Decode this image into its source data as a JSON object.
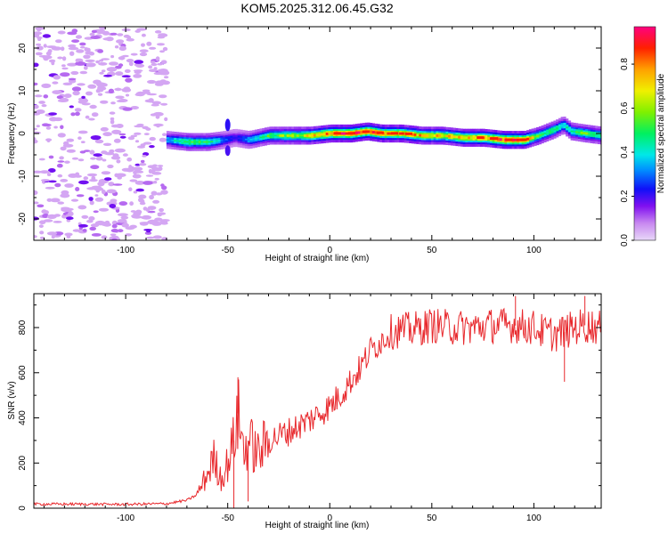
{
  "title": "KOM5.2025.312.06.45.G32",
  "colors": {
    "background": "#ffffff",
    "snr_line": "#e8282c",
    "axes": "#000000"
  },
  "chart_data": [
    {
      "type": "heatmap",
      "xlabel": "Height of straight line (km)",
      "ylabel": "Frequency (Hz)",
      "xlim": [
        -145,
        133
      ],
      "ylim": [
        -25,
        25
      ],
      "xticks": [
        -100,
        -50,
        0,
        50,
        100
      ],
      "yticks": [
        -20,
        -10,
        0,
        10,
        20
      ],
      "grid": false,
      "colorbar": {
        "label": "Normalized spectral amplitude",
        "range": [
          0,
          0.97
        ],
        "ticks": [
          0.0,
          0.2,
          0.4,
          0.6,
          0.8
        ]
      },
      "noise_region_x": [
        -145,
        -80
      ],
      "ridge": {
        "x": [
          -80,
          -70,
          -60,
          -52,
          -47,
          -40,
          -30,
          -20,
          -10,
          0,
          10,
          18,
          25,
          35,
          45,
          55,
          65,
          75,
          85,
          95,
          102,
          110,
          114,
          118,
          125,
          133
        ],
        "frequency": [
          -1.5,
          -2,
          -2,
          -1.5,
          -1,
          -1.5,
          -0.5,
          -0.5,
          -0.5,
          0,
          0,
          0.5,
          0,
          0,
          -0.5,
          -0.5,
          -1,
          -1,
          -1.5,
          -1.5,
          -0.5,
          1,
          2,
          0.5,
          0,
          -0.5
        ],
        "amplitude": [
          0.35,
          0.55,
          0.5,
          0.3,
          0.2,
          0.35,
          0.55,
          0.6,
          0.7,
          0.85,
          0.9,
          0.9,
          0.85,
          0.8,
          0.75,
          0.7,
          0.75,
          0.8,
          0.9,
          0.85,
          0.55,
          0.5,
          0.4,
          0.5,
          0.55,
          0.5
        ]
      }
    },
    {
      "type": "line",
      "xlabel": "Height of straight line (km)",
      "ylabel": "SNR (v/v)",
      "xlim": [
        -145,
        133
      ],
      "ylim": [
        0,
        950
      ],
      "xticks": [
        -100,
        -50,
        0,
        50,
        100
      ],
      "yticks": [
        0,
        200,
        400,
        600,
        800
      ],
      "grid": false,
      "series": [
        {
          "name": "SNR",
          "x": [
            -145,
            -120,
            -100,
            -80,
            -70,
            -65,
            -60,
            -57,
            -53,
            -50,
            -47,
            -45,
            -42,
            -40,
            -35,
            -30,
            -20,
            -10,
            -5,
            0,
            5,
            10,
            15,
            20,
            25,
            30,
            35,
            40,
            45,
            50,
            60,
            70,
            80,
            90,
            100,
            105,
            110,
            115,
            120,
            125,
            133
          ],
          "y": [
            18,
            18,
            17,
            20,
            35,
            60,
            150,
            220,
            130,
            200,
            300,
            420,
            250,
            300,
            240,
            300,
            340,
            390,
            420,
            450,
            500,
            560,
            620,
            700,
            740,
            780,
            790,
            790,
            800,
            810,
            800,
            800,
            810,
            810,
            800,
            780,
            770,
            780,
            800,
            810,
            800
          ]
        }
      ]
    }
  ]
}
